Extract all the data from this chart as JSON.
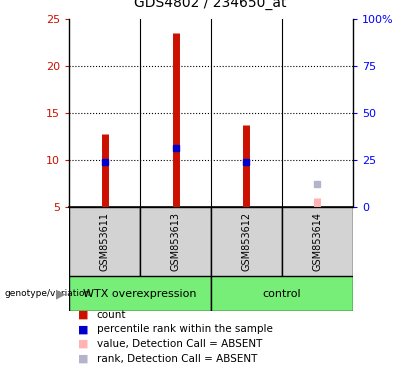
{
  "title": "GDS4802 / 234650_at",
  "samples": [
    "GSM853611",
    "GSM853613",
    "GSM853612",
    "GSM853614"
  ],
  "count_values": [
    12.8,
    23.5,
    13.8,
    null
  ],
  "percentile_rank": [
    9.8,
    11.3,
    9.8,
    null
  ],
  "absent_value": [
    null,
    null,
    null,
    6.0
  ],
  "absent_rank": [
    null,
    null,
    null,
    7.5
  ],
  "ylim_left": [
    5,
    25
  ],
  "ylim_right": [
    0,
    100
  ],
  "yticks_left": [
    5,
    10,
    15,
    20,
    25
  ],
  "yticks_right": [
    0,
    25,
    50,
    75,
    100
  ],
  "bar_base": 5,
  "count_color": "#cc1100",
  "rank_color": "#0000cc",
  "absent_value_color": "#ffb3b3",
  "absent_rank_color": "#b3b3cc",
  "sample_label_area_color": "#d3d3d3",
  "group1_color": "#77ee77",
  "group2_color": "#77ee77",
  "title_fontsize": 10,
  "tick_fontsize": 8,
  "legend_fontsize": 7.5,
  "sample_fontsize": 7,
  "group_fontsize": 8
}
